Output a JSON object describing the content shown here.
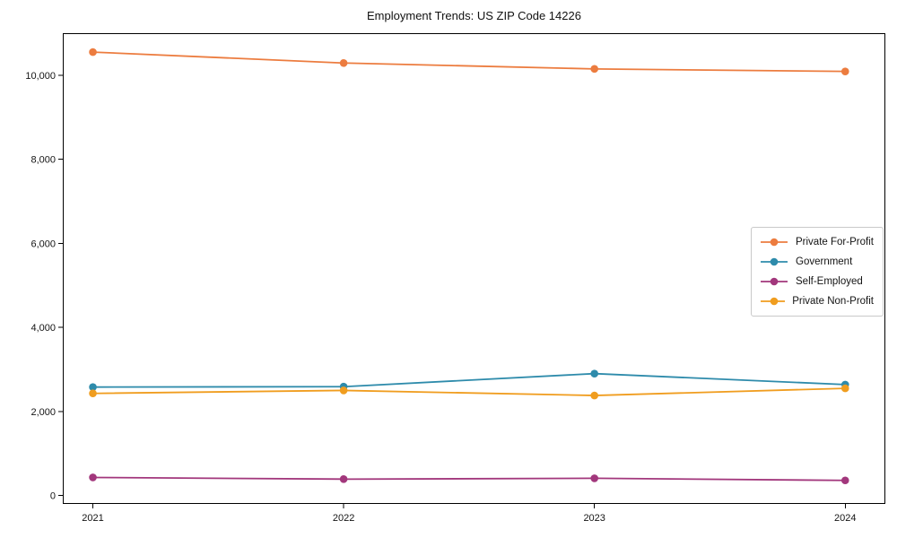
{
  "figure": {
    "title": "Employment Trends: US ZIP Code 14226"
  },
  "chart_data": {
    "type": "line",
    "title": "Employment Trends: US ZIP Code 14226",
    "categories": [
      "2021",
      "2022",
      "2023",
      "2024"
    ],
    "series": [
      {
        "name": "Private For-Profit",
        "color": "#ec7c3f",
        "values": [
          10550,
          10290,
          10150,
          10090
        ]
      },
      {
        "name": "Government",
        "color": "#2e8bab",
        "values": [
          2580,
          2590,
          2900,
          2640
        ]
      },
      {
        "name": "Self-Employed",
        "color": "#a2377c",
        "values": [
          430,
          390,
          410,
          360
        ]
      },
      {
        "name": "Private Non-Profit",
        "color": "#f09d1f",
        "values": [
          2430,
          2500,
          2380,
          2550
        ]
      }
    ],
    "xlabel": "",
    "ylabel": "",
    "ylim": [
      -200,
      11000
    ],
    "yticks": [
      0,
      2000,
      4000,
      6000,
      8000,
      10000
    ],
    "xlim": [
      -0.12,
      3.16
    ],
    "grid": false,
    "legend_position": "center right",
    "marker": "circle",
    "axis_color": "#000000"
  }
}
